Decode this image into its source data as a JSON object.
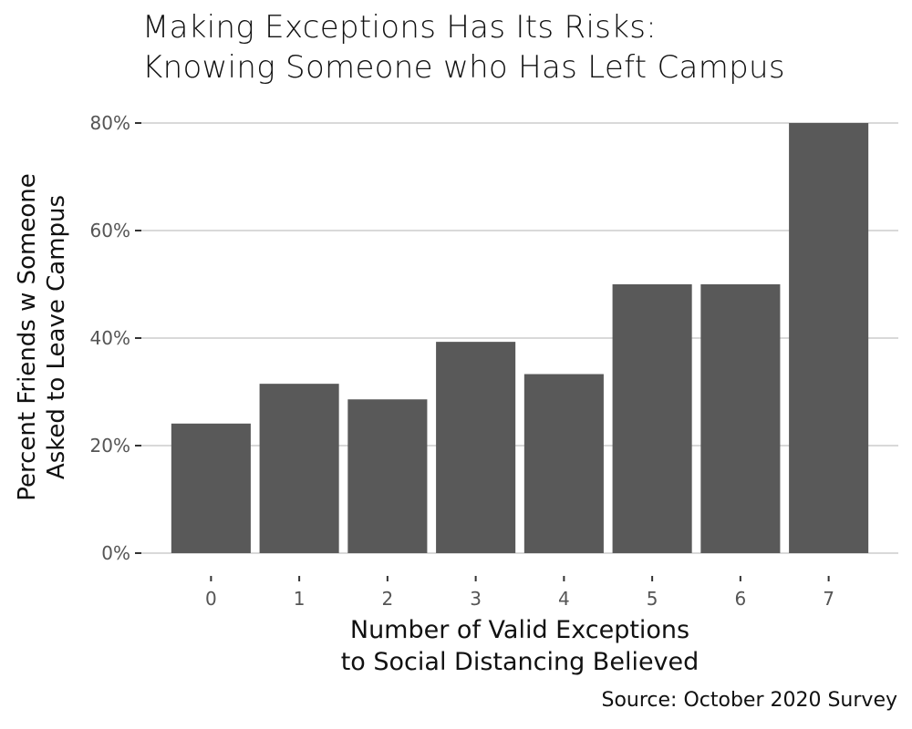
{
  "chart_data": {
    "type": "bar",
    "title": "Making Exceptions Has Its Risks:\nKnowing Someone who Has Left Campus",
    "title_lines": [
      "Making Exceptions Has Its Risks:",
      "Knowing Someone who Has Left Campus"
    ],
    "xlabel_lines": [
      "Number of Valid Exceptions",
      "to Social Distancing Believed"
    ],
    "ylabel_lines": [
      "Percent Friends w Someone",
      "Asked to Leave Campus"
    ],
    "caption": "Source: October 2020 Survey",
    "categories": [
      "0",
      "1",
      "2",
      "3",
      "4",
      "5",
      "6",
      "7"
    ],
    "values": [
      24.1,
      31.5,
      28.6,
      39.3,
      33.3,
      50.0,
      50.0,
      80.0
    ],
    "ylim": [
      0,
      80
    ],
    "yticks": [
      0,
      20,
      40,
      60,
      80
    ],
    "ytick_labels": [
      "0%",
      "20%",
      "40%",
      "60%",
      "80%"
    ],
    "grid": true,
    "bar_color": "#595959",
    "grid_color": "#d9d9d9"
  }
}
